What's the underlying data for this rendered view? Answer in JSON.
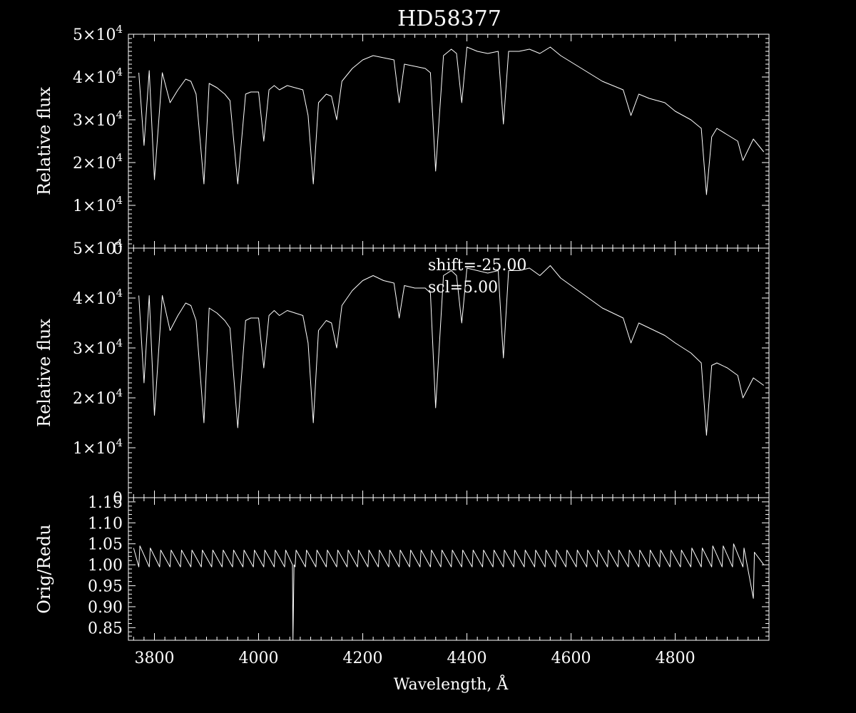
{
  "chart_data": [
    {
      "type": "line",
      "panel": "top",
      "title": "HD58377",
      "ylabel": "Relative flux",
      "xlim": [
        3750,
        4980
      ],
      "ylim": [
        0,
        50000
      ],
      "yticks": [
        {
          "value": 0,
          "mantissa": "0",
          "power": ""
        },
        {
          "value": 10000,
          "mantissa": "1×10",
          "power": "4"
        },
        {
          "value": 20000,
          "mantissa": "2×10",
          "power": "4"
        },
        {
          "value": 30000,
          "mantissa": "3×10",
          "power": "4"
        },
        {
          "value": 40000,
          "mantissa": "4×10",
          "power": "4"
        },
        {
          "value": 50000,
          "mantissa": "5×10",
          "power": "4"
        }
      ],
      "series": [
        {
          "x": [
            3770,
            3780,
            3790,
            3800,
            3815,
            3830,
            3845,
            3860,
            3870,
            3880,
            3895,
            3905,
            3920,
            3935,
            3945,
            3960,
            3975,
            3985,
            4000,
            4010,
            4020,
            4030,
            4040,
            4055,
            4070,
            4085,
            4095,
            4105,
            4115,
            4130,
            4140,
            4150,
            4160,
            4180,
            4200,
            4220,
            4240,
            4260,
            4270,
            4280,
            4300,
            4320,
            4330,
            4340,
            4355,
            4370,
            4380,
            4390,
            4400,
            4420,
            4440,
            4460,
            4470,
            4480,
            4500,
            4520,
            4540,
            4560,
            4580,
            4600,
            4620,
            4640,
            4660,
            4680,
            4700,
            4715,
            4730,
            4750,
            4780,
            4800,
            4830,
            4850,
            4860,
            4870,
            4880,
            4900,
            4920,
            4930,
            4950,
            4970
          ],
          "y": [
            41000,
            24000,
            41500,
            16000,
            41000,
            34000,
            37000,
            39500,
            39000,
            36000,
            15000,
            38500,
            37500,
            36000,
            34500,
            15000,
            36000,
            36500,
            36500,
            25000,
            37000,
            38000,
            37000,
            38000,
            37500,
            37000,
            31000,
            15000,
            34000,
            36000,
            35500,
            30000,
            39000,
            42000,
            44000,
            45000,
            44500,
            44000,
            34000,
            43000,
            42500,
            42000,
            41000,
            18000,
            45000,
            46500,
            45500,
            34000,
            47000,
            46000,
            45500,
            46000,
            29000,
            46000,
            46000,
            46500,
            45500,
            47000,
            45000,
            43500,
            42000,
            40500,
            39000,
            38000,
            37000,
            31000,
            36000,
            35000,
            34000,
            32000,
            30000,
            28000,
            12500,
            26000,
            28000,
            26500,
            25000,
            20500,
            25500,
            22500
          ]
        }
      ]
    },
    {
      "type": "line",
      "panel": "middle",
      "ylabel": "Relative flux",
      "xlim": [
        3750,
        4980
      ],
      "ylim": [
        0,
        50000
      ],
      "annotations": [
        "shift=-25.00",
        "scl=5.00"
      ],
      "yticks": [
        {
          "value": 0,
          "mantissa": "0",
          "power": ""
        },
        {
          "value": 10000,
          "mantissa": "1×10",
          "power": "4"
        },
        {
          "value": 20000,
          "mantissa": "2×10",
          "power": "4"
        },
        {
          "value": 30000,
          "mantissa": "3×10",
          "power": "4"
        },
        {
          "value": 40000,
          "mantissa": "4×10",
          "power": "4"
        },
        {
          "value": 50000,
          "mantissa": "5×10",
          "power": "4"
        }
      ],
      "series": [
        {
          "x": [
            3770,
            3780,
            3790,
            3800,
            3815,
            3830,
            3845,
            3860,
            3870,
            3880,
            3895,
            3905,
            3920,
            3935,
            3945,
            3960,
            3975,
            3985,
            4000,
            4010,
            4020,
            4030,
            4040,
            4055,
            4070,
            4085,
            4095,
            4105,
            4115,
            4130,
            4140,
            4150,
            4160,
            4180,
            4200,
            4220,
            4240,
            4260,
            4270,
            4280,
            4300,
            4320,
            4330,
            4340,
            4355,
            4370,
            4380,
            4390,
            4400,
            4420,
            4440,
            4460,
            4470,
            4480,
            4500,
            4520,
            4540,
            4560,
            4580,
            4600,
            4620,
            4640,
            4660,
            4680,
            4700,
            4715,
            4730,
            4750,
            4780,
            4800,
            4830,
            4850,
            4860,
            4870,
            4880,
            4900,
            4920,
            4930,
            4950,
            4970
          ],
          "y": [
            40500,
            23000,
            40500,
            16500,
            40500,
            33500,
            36500,
            39000,
            38500,
            35500,
            15000,
            38000,
            37000,
            35500,
            34000,
            14000,
            35500,
            36000,
            36000,
            26000,
            36500,
            37500,
            36500,
            37500,
            37000,
            36500,
            31000,
            15000,
            33500,
            35500,
            35000,
            30000,
            38500,
            41500,
            43500,
            44500,
            43500,
            43000,
            36000,
            42500,
            42000,
            42000,
            41000,
            18000,
            44500,
            45500,
            44500,
            35000,
            46000,
            45500,
            45000,
            45500,
            28000,
            45500,
            45500,
            46000,
            44500,
            46500,
            44000,
            42500,
            41000,
            39500,
            38000,
            37000,
            36000,
            31000,
            35000,
            34000,
            32500,
            31000,
            29000,
            27000,
            12500,
            26500,
            27000,
            26000,
            24500,
            20000,
            24000,
            22500
          ]
        }
      ]
    },
    {
      "type": "line",
      "panel": "bottom",
      "ylabel": "Orig/Redu",
      "xlabel": "Wavelength, Å",
      "xlim": [
        3750,
        4980
      ],
      "ylim": [
        0.82,
        1.16
      ],
      "xticks": [
        3800,
        4000,
        4200,
        4400,
        4600,
        4800
      ],
      "xtick_labels": [
        "3800",
        "4000",
        "4200",
        "4400",
        "4600",
        "4800"
      ],
      "yticks": [
        0.85,
        0.9,
        0.95,
        1.0,
        1.05,
        1.1,
        1.15
      ],
      "ytick_labels": [
        "0.85",
        "0.90",
        "0.95",
        "1.00",
        "1.05",
        "1.10",
        "1.15"
      ],
      "series": [
        {
          "x": [
            3760,
            3770,
            3772,
            3790,
            3792,
            3810,
            3812,
            3830,
            3832,
            3850,
            3852,
            3870,
            3872,
            3890,
            3892,
            3910,
            3912,
            3930,
            3932,
            3950,
            3952,
            3970,
            3972,
            3990,
            3992,
            4010,
            4012,
            4030,
            4032,
            4050,
            4052,
            4065,
            4066,
            4068,
            4070,
            4072,
            4090,
            4092,
            4110,
            4112,
            4130,
            4132,
            4150,
            4152,
            4170,
            4172,
            4190,
            4192,
            4210,
            4212,
            4230,
            4232,
            4250,
            4252,
            4270,
            4272,
            4290,
            4292,
            4310,
            4312,
            4330,
            4332,
            4350,
            4352,
            4370,
            4372,
            4390,
            4392,
            4410,
            4412,
            4430,
            4432,
            4450,
            4452,
            4470,
            4472,
            4490,
            4492,
            4510,
            4512,
            4530,
            4532,
            4550,
            4552,
            4570,
            4572,
            4590,
            4592,
            4610,
            4612,
            4630,
            4632,
            4650,
            4652,
            4670,
            4672,
            4690,
            4692,
            4710,
            4712,
            4730,
            4732,
            4750,
            4752,
            4770,
            4772,
            4790,
            4792,
            4810,
            4812,
            4830,
            4832,
            4850,
            4852,
            4870,
            4872,
            4890,
            4892,
            4910,
            4912,
            4930,
            4932,
            4950,
            4952,
            4970
          ],
          "y": [
            1.04,
            0.995,
            1.045,
            0.995,
            1.04,
            0.995,
            1.035,
            0.995,
            1.035,
            0.995,
            1.035,
            0.995,
            1.035,
            0.995,
            1.035,
            0.995,
            1.035,
            0.995,
            1.035,
            0.995,
            1.035,
            0.995,
            1.035,
            0.995,
            1.035,
            0.995,
            1.035,
            0.995,
            1.035,
            0.995,
            1.035,
            1.0,
            0.82,
            1.0,
            0.995,
            1.035,
            0.995,
            1.035,
            0.995,
            1.035,
            0.995,
            1.035,
            0.995,
            1.035,
            0.995,
            1.035,
            0.995,
            1.035,
            0.995,
            1.035,
            0.995,
            1.035,
            0.995,
            1.035,
            0.995,
            1.035,
            0.995,
            1.035,
            0.995,
            1.035,
            0.995,
            1.035,
            0.995,
            1.035,
            0.995,
            1.035,
            0.995,
            1.035,
            0.995,
            1.035,
            0.995,
            1.035,
            0.995,
            1.035,
            0.995,
            1.035,
            0.995,
            1.035,
            0.995,
            1.035,
            0.995,
            1.035,
            0.995,
            1.035,
            0.995,
            1.035,
            0.995,
            1.035,
            0.995,
            1.035,
            0.995,
            1.035,
            0.995,
            1.035,
            0.995,
            1.035,
            0.995,
            1.035,
            0.995,
            1.035,
            0.995,
            1.035,
            0.995,
            1.035,
            0.995,
            1.035,
            0.995,
            1.035,
            0.995,
            1.035,
            0.995,
            1.04,
            0.995,
            1.04,
            0.995,
            1.045,
            0.995,
            1.045,
            0.995,
            1.05,
            0.995,
            1.04,
            0.92,
            1.03,
            1.0
          ]
        }
      ]
    }
  ]
}
